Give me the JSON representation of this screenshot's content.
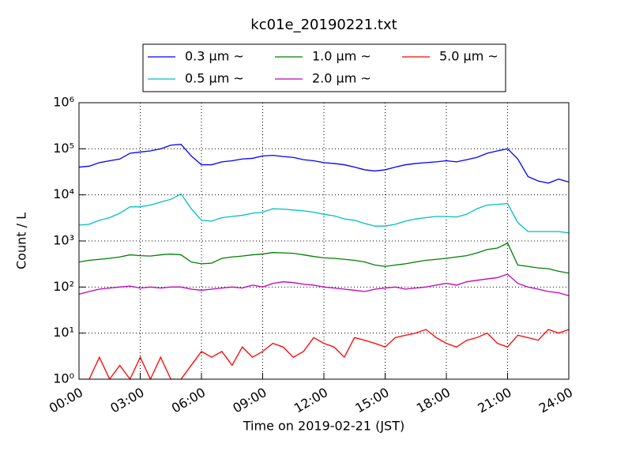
{
  "chart_data": {
    "type": "line",
    "title": "kc01e_20190221.txt",
    "x_label": "Time on 2019-02-21 (JST)",
    "y_label": "Count / L",
    "log_y": true,
    "grid": true,
    "legend_position": "top",
    "x": [
      0,
      0.5,
      1,
      1.5,
      2,
      2.5,
      3,
      3.5,
      4,
      4.5,
      5,
      5.5,
      6,
      6.5,
      7,
      7.5,
      8,
      8.5,
      9,
      9.5,
      10,
      10.5,
      11,
      11.5,
      12,
      12.5,
      13,
      13.5,
      14,
      14.5,
      15,
      15.5,
      16,
      16.5,
      17,
      17.5,
      18,
      18.5,
      19,
      19.5,
      20,
      20.5,
      21,
      21.5,
      22,
      22.5,
      23,
      23.5,
      24
    ],
    "xlim": [
      0,
      24
    ],
    "xticks": [
      {
        "value": 0,
        "label": "00:00"
      },
      {
        "value": 3,
        "label": "03:00"
      },
      {
        "value": 6,
        "label": "06:00"
      },
      {
        "value": 9,
        "label": "09:00"
      },
      {
        "value": 12,
        "label": "12:00"
      },
      {
        "value": 15,
        "label": "15:00"
      },
      {
        "value": 18,
        "label": "18:00"
      },
      {
        "value": 21,
        "label": "21:00"
      },
      {
        "value": 24,
        "label": "24:00"
      }
    ],
    "ylim": [
      1,
      1000000
    ],
    "yticks": [
      {
        "value": 1,
        "label": "10⁰"
      },
      {
        "value": 10,
        "label": "10¹"
      },
      {
        "value": 100,
        "label": "10²"
      },
      {
        "value": 1000,
        "label": "10³"
      },
      {
        "value": 10000,
        "label": "10⁴"
      },
      {
        "value": 100000,
        "label": "10⁵"
      },
      {
        "value": 1000000,
        "label": "10⁶"
      }
    ],
    "series": [
      {
        "name": "0.3 μm ~",
        "color": "#0000ff",
        "values": [
          40000,
          42000,
          50000,
          55000,
          60000,
          80000,
          85000,
          90000,
          100000,
          120000,
          125000,
          70000,
          45000,
          45000,
          52000,
          55000,
          60000,
          62000,
          70000,
          72000,
          68000,
          65000,
          58000,
          55000,
          50000,
          48000,
          45000,
          40000,
          35000,
          33000,
          35000,
          40000,
          45000,
          48000,
          50000,
          52000,
          55000,
          52000,
          58000,
          65000,
          80000,
          90000,
          100000,
          60000,
          25000,
          20000,
          18000,
          22000,
          19000
        ]
      },
      {
        "name": "0.5 μm ~",
        "color": "#00bfbf",
        "values": [
          2200,
          2300,
          2800,
          3200,
          4000,
          5500,
          5500,
          6000,
          7000,
          8000,
          10500,
          5000,
          2800,
          2700,
          3200,
          3400,
          3600,
          4000,
          4200,
          5000,
          4900,
          4700,
          4500,
          4200,
          3800,
          3500,
          3000,
          2800,
          2400,
          2100,
          2100,
          2300,
          2700,
          3000,
          3200,
          3400,
          3400,
          3300,
          3800,
          5000,
          6000,
          6200,
          6500,
          2500,
          1600,
          1600,
          1600,
          1600,
          1500
        ]
      },
      {
        "name": "1.0 μm ~",
        "color": "#008000",
        "values": [
          350,
          380,
          400,
          420,
          450,
          500,
          480,
          470,
          500,
          520,
          500,
          350,
          320,
          330,
          420,
          450,
          470,
          500,
          520,
          560,
          550,
          540,
          500,
          460,
          430,
          420,
          400,
          380,
          350,
          300,
          280,
          300,
          320,
          350,
          380,
          400,
          420,
          450,
          480,
          550,
          650,
          700,
          900,
          300,
          280,
          260,
          250,
          220,
          200
        ]
      },
      {
        "name": "2.0 μm ~",
        "color": "#bf00bf",
        "values": [
          70,
          80,
          90,
          95,
          100,
          105,
          95,
          100,
          95,
          100,
          100,
          90,
          85,
          90,
          95,
          100,
          95,
          110,
          100,
          120,
          130,
          125,
          115,
          110,
          100,
          95,
          90,
          85,
          80,
          90,
          95,
          100,
          90,
          95,
          100,
          110,
          120,
          110,
          130,
          140,
          150,
          160,
          190,
          120,
          100,
          90,
          80,
          75,
          65
        ]
      },
      {
        "name": "5.0 μm ~",
        "color": "#ff0000",
        "values": [
          1,
          1,
          3,
          1,
          2,
          1,
          3,
          1,
          3,
          1,
          1,
          2,
          4,
          3,
          4,
          2,
          5,
          3,
          4,
          6,
          5,
          3,
          4,
          8,
          6,
          5,
          3,
          8,
          7,
          6,
          5,
          8,
          9,
          10,
          12,
          8,
          6,
          5,
          7,
          8,
          10,
          6,
          5,
          9,
          8,
          7,
          12,
          10,
          12
        ]
      }
    ]
  }
}
